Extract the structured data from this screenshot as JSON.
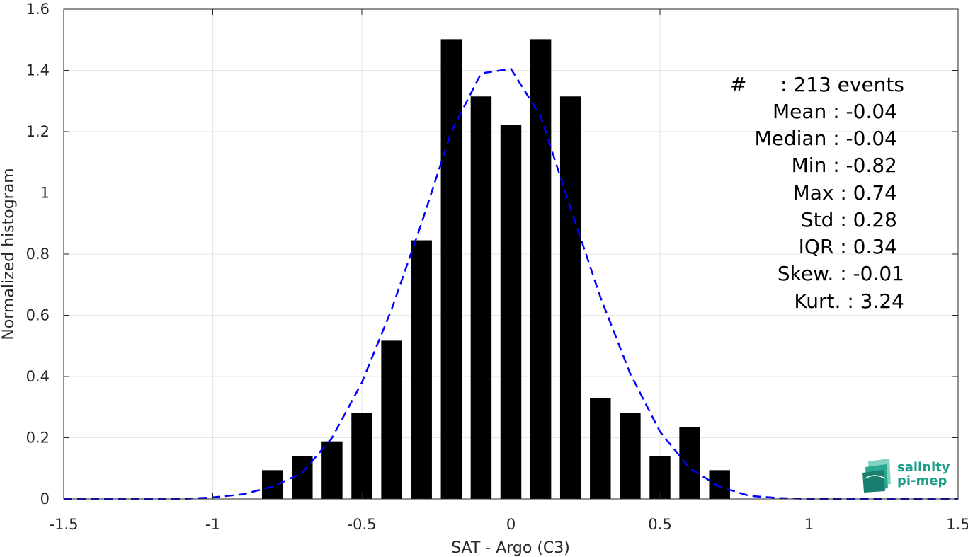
{
  "chart_data": {
    "type": "bar",
    "xlabel": "SAT - Argo (C3)",
    "ylabel": "Normalized histogram",
    "xlim": [
      -1.5,
      1.5
    ],
    "ylim": [
      0,
      1.6
    ],
    "xticks": [
      "-1.5",
      "-1",
      "-0.5",
      "0",
      "0.5",
      "1",
      "1.5"
    ],
    "yticks": [
      "0",
      "0.2",
      "0.4",
      "0.6",
      "0.8",
      "1",
      "1.2",
      "1.4",
      "1.6"
    ],
    "grid": true,
    "bar_color": "#000000",
    "bar_width": 0.07,
    "bins": [
      -0.8,
      -0.7,
      -0.6,
      -0.5,
      -0.4,
      -0.3,
      -0.2,
      -0.1,
      0.0,
      0.1,
      0.2,
      0.3,
      0.4,
      0.5,
      0.6,
      0.7
    ],
    "values": [
      0.094,
      0.141,
      0.188,
      0.282,
      0.517,
      0.845,
      1.502,
      1.315,
      1.221,
      1.502,
      1.315,
      0.329,
      0.282,
      0.141,
      0.235,
      0.094
    ],
    "fit_curve": {
      "style": "dashed",
      "color": "#0000ff",
      "x": [
        -1.5,
        -1.4,
        -1.3,
        -1.2,
        -1.1,
        -1.0,
        -0.9,
        -0.8,
        -0.7,
        -0.6,
        -0.5,
        -0.4,
        -0.3,
        -0.2,
        -0.1,
        0.0,
        0.1,
        0.2,
        0.3,
        0.4,
        0.5,
        0.6,
        0.7,
        0.8,
        0.9,
        1.0,
        1.1,
        1.2,
        1.3,
        1.4,
        1.5
      ],
      "y": [
        0.0,
        0.0,
        0.0,
        0.0,
        0.0,
        0.005,
        0.015,
        0.04,
        0.085,
        0.2,
        0.38,
        0.62,
        0.9,
        1.2,
        1.39,
        1.405,
        1.25,
        0.95,
        0.66,
        0.41,
        0.22,
        0.1,
        0.04,
        0.01,
        0.003,
        0.0,
        0.0,
        0.0,
        0.0,
        0.0,
        0.0
      ]
    },
    "stats": {
      "count_label": "#",
      "count_value": ": 213 events",
      "mean": "Mean : -0.04",
      "median": "Median : -0.04",
      "min": "Min : -0.82",
      "max": "Max : 0.74",
      "std": "Std : 0.28",
      "iqr": "IQR : 0.34",
      "skew": "Skew. : -0.01",
      "kurt": "Kurt. : 3.24"
    }
  },
  "logo": {
    "line1": "salinity",
    "line2": "pi-mep",
    "color": "#1e9c8a"
  }
}
